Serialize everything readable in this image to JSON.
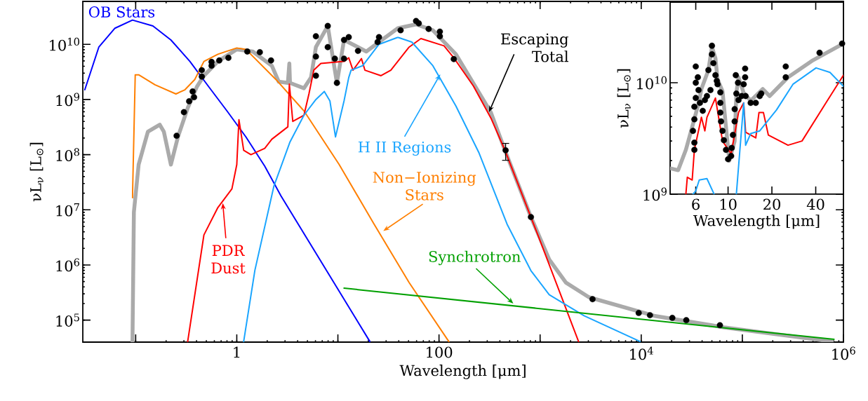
{
  "chart_data": [
    {
      "type": "line",
      "xlabel": "Wavelength [μm]",
      "ylabel": "νL$_{ν}$ [L$_{⊙}$]",
      "log": "xy",
      "xlim": [
        0.03,
        1000000.0
      ],
      "ylim": [
        40000.0,
        60000000000.0
      ],
      "xticks": [
        {
          "value": 0.1,
          "label": null
        },
        1,
        {
          "value": 10,
          "label": null
        },
        100,
        {
          "value": 1000,
          "label": null
        },
        {
          "value": 10000,
          "label": "10$^{4}$"
        },
        {
          "value": 100000,
          "label": null
        },
        {
          "value": 1000000,
          "label": "10$^{6}$"
        }
      ],
      "yticks": [
        {
          "value": 100000.0,
          "label": "10$^{5}$"
        },
        {
          "value": 1000000.0,
          "label": "10$^{6}$"
        },
        {
          "value": 10000000.0,
          "label": "10$^{7}$"
        },
        {
          "value": 100000000.0,
          "label": "10$^{8}$"
        },
        {
          "value": 1000000000.0,
          "label": "10$^{9}$"
        },
        {
          "value": 10000000000.0,
          "label": "10$^{10}$"
        }
      ],
      "series": [
        {
          "name": "Escaping Total",
          "color": "#aaaaaa",
          "x": [
            0.093,
            0.096,
            0.107,
            0.132,
            0.173,
            0.19,
            0.223,
            0.262,
            0.327,
            0.403,
            0.473,
            0.65,
            1.0,
            1.44,
            2.22,
            2.6,
            3.2,
            3.31,
            3.36,
            4.62,
            5.42,
            6.06,
            7.94,
            9.78,
            11.5,
            15.8,
            19.1,
            25.5,
            39.2,
            59.3,
            86.9,
            147,
            326,
            449,
            811,
            1230,
            1800,
            3040,
            13400,
            66000,
            770000
          ],
          "values": [
            41000.0,
            9100000.0,
            66000000.0,
            260000000.0,
            350000000.0,
            260000000.0,
            66000000.0,
            210000000.0,
            700000000.0,
            1700000000.0,
            2700000000.0,
            4900000000.0,
            8100000000.0,
            7400000000.0,
            4100000000.0,
            2100000000.0,
            2000000000.0,
            4500000000.0,
            2000000000.0,
            1600000000.0,
            2500000000.0,
            8900000000.0,
            21500000000.0,
            2000000000.0,
            12000000000.0,
            8900000000.0,
            7400000000.0,
            11000000000.0,
            19600000000.0,
            23000000000.0,
            18000000000.0,
            6600000000.0,
            580000000.0,
            120000000.0,
            7400000.0,
            1260000.0,
            480000.0,
            260000.0,
            120000.0,
            74000.0,
            41000.0
          ]
        },
        {
          "name": "OB Stars",
          "color": "#0000ff",
          "x": [
            0.0314,
            0.0432,
            0.0624,
            0.093,
            0.148,
            0.223,
            0.344,
            0.528,
            0.8,
            1.23,
            1.89,
            2.73,
            5.17,
            20.7
          ],
          "values": [
            1500000000.0,
            8900000000.0,
            19600000000.0,
            27500000000.0,
            21500000000.0,
            12000000000.0,
            4900000000.0,
            1700000000.0,
            620000000.0,
            210000000.0,
            62000000.0,
            18000000.0,
            2650000.0,
            41000.0
          ]
        },
        {
          "name": "Non−Ionizing Stars",
          "color": "#ff7f00",
          "x": [
            0.093,
            0.099,
            0.107,
            0.155,
            0.25,
            0.307,
            0.384,
            0.473,
            0.65,
            1.0,
            1.23,
            2.44,
            4.62,
            10.3,
            22.8,
            50.6,
            125
          ],
          "values": [
            16600000.0,
            2800000000.0,
            2800000000.0,
            1850000000.0,
            1260000000.0,
            1500000000.0,
            2300000000.0,
            4900000000.0,
            6600000000.0,
            8600000000.0,
            8100000000.0,
            2300000000.0,
            620000000.0,
            66000000.0,
            5500000.0,
            480000.0,
            41000.0
          ]
        },
        {
          "name": "PDR Dust",
          "color": "#ff0000",
          "x": [
            0.327,
            0.473,
            0.65,
            0.895,
            1.0,
            1.05,
            1.17,
            1.38,
            1.89,
            2.22,
            3.2,
            3.31,
            3.58,
            4.62,
            5.17,
            5.78,
            6.78,
            11.5,
            12.8,
            14.1,
            17.1,
            18.5,
            26.7,
            33.4,
            50.6,
            66.2,
            112,
            140,
            219,
            326,
            449,
            950,
            2400
          ],
          "values": [
            41000.0,
            3500000.0,
            11000000.0,
            24000000.0,
            66000000.0,
            430000000.0,
            120000000.0,
            100000000.0,
            130000000.0,
            190000000.0,
            320000000.0,
            1900000000.0,
            400000000.0,
            520000000.0,
            1260000000.0,
            3400000000.0,
            4500000000.0,
            4900000000.0,
            5700000000.0,
            3400000000.0,
            5500000000.0,
            3400000000.0,
            2700000000.0,
            3400000000.0,
            8900000000.0,
            12700000000.0,
            9400000000.0,
            5700000000.0,
            1750000000.0,
            460000000.0,
            120000000.0,
            3500000.0,
            41000.0
          ]
        },
        {
          "name": "H II Regions",
          "color": "#1aa5ff",
          "x": [
            1.17,
            1.51,
            2.33,
            3.36,
            4.62,
            6.06,
            7.34,
            8.34,
            9.47,
            11.5,
            12.8,
            13.5,
            17.6,
            25.5,
            39.2,
            53.8,
            86.9,
            147,
            249,
            471,
            811,
            1230,
            2720,
            9750
          ],
          "values": [
            41000.0,
            800000.0,
            27000000.0,
            170000000.0,
            520000000.0,
            1000000000.0,
            1400000000.0,
            940000000.0,
            210000000.0,
            940000000.0,
            2500000000.0,
            3400000000.0,
            4100000000.0,
            10000000000.0,
            13400000000.0,
            11000000000.0,
            4100000000.0,
            760000000.0,
            107000000.0,
            5500000.0,
            790000.0,
            290000.0,
            120000.0,
            41000.0
          ]
        },
        {
          "name": "Synchrotron",
          "color": "#00a000",
          "x": [
            11.5,
            807000
          ],
          "values": [
            380000.0,
            45000.0
          ]
        },
        {
          "type": "scatter",
          "color": "#000000",
          "marker": "circle",
          "x": [
            0.254,
            0.3,
            0.338,
            0.366,
            0.378,
            0.451,
            0.451,
            0.563,
            0.563,
            0.671,
            0.826,
            1.27,
            1.69,
            2.18,
            6.06,
            6.06,
            6.06,
            7.94,
            7.94,
            9.33,
            9.78,
            11.5,
            11.5,
            12.8,
            15.8,
            24.7,
            25.5,
            41.7,
            59.3,
            63.1,
            79,
            102,
            102,
            140,
            456,
            811,
            3300,
            9440,
            12200,
            20300,
            27900,
            60000
          ],
          "values": [
            220000000.0,
            590000000.0,
            930000000.0,
            1400000000.0,
            1100000000.0,
            3400000000.0,
            2600000000.0,
            4800000000.0,
            4100000000.0,
            5100000000.0,
            5700000000.0,
            7400000000.0,
            7200000000.0,
            5100000000.0,
            14000000000.0,
            6000000000.0,
            2700000000.0,
            21500000000.0,
            8900000000.0,
            5500000000.0,
            2000000000.0,
            12000000000.0,
            5500000000.0,
            13500000000.0,
            7600000000.0,
            11000000000.0,
            13500000000.0,
            18000000000.0,
            26500000000.0,
            24000000000.0,
            19000000000.0,
            17000000000.0,
            14000000000.0,
            5400000000.0,
            120000000.0,
            7400000.0,
            240000.0,
            135000.0,
            123000.0,
            110000.0,
            100000.0,
            81000.0
          ],
          "errors": [
            null,
            null,
            null,
            null,
            null,
            null,
            null,
            null,
            null,
            null,
            null,
            null,
            null,
            null,
            null,
            null,
            null,
            null,
            null,
            null,
            null,
            null,
            null,
            null,
            null,
            null,
            null,
            null,
            null,
            null,
            null,
            null,
            null,
            null,
            [
              79000000.0,
              160000000.0
            ],
            null,
            null,
            null,
            null,
            null,
            null,
            null
          ]
        }
      ]
    },
    {
      "type": "line",
      "xlabel": "Wavelength [μm]",
      "ylabel": "νL$_{ν}$ [L$_{⊙}$]",
      "log": "xy",
      "xlim": [
        4,
        62
      ],
      "ylim": [
        1000000000.0,
        53000000000.0
      ],
      "xticks": [
        6,
        10,
        20,
        40
      ],
      "yticks": [
        {
          "value": 1000000000.0,
          "label": "10$^{9}$"
        },
        {
          "value": 10000000000.0,
          "label": "10$^{10}$"
        }
      ],
      "series": [
        {
          "color": "#aaaaaa",
          "x": [
            4.06,
            4.54,
            5.13,
            5.67,
            6.34,
            6.56,
            7.33,
            7.75,
            8.19,
            8.47,
            9.16,
            9.89,
            10.2,
            11.1,
            11.4,
            11.8,
            12.8,
            14.3,
            17.3,
            19.3,
            25.8,
            37.6,
            62
          ],
          "values": [
            1700000000.0,
            1640000000.0,
            2500000000.0,
            4000000000.0,
            6900000000.0,
            8800000000.0,
            13000000000.0,
            21000000000.0,
            16600000000.0,
            10700000000.0,
            8400000000.0,
            3000000000.0,
            2000000000.0,
            3000000000.0,
            8100000000.0,
            11200000000.0,
            8100000000.0,
            6900000000.0,
            8800000000.0,
            7600000000.0,
            11200000000.0,
            15700000000.0,
            22500000000.0
          ]
        },
        {
          "color": "#ff0000",
          "x": [
            5.13,
            5.25,
            5.67,
            5.87,
            6.56,
            6.93,
            7.16,
            8.19,
            9.16,
            10.5,
            11.8,
            12.8,
            13.2,
            15.5,
            16.3,
            17.5,
            18.9,
            25.8,
            32.2,
            47,
            62
          ],
          "values": [
            1000000000.0,
            1420000000.0,
            1340000000.0,
            2500000000.0,
            4900000000.0,
            3700000000.0,
            4900000000.0,
            7300000000.0,
            3000000000.0,
            2300000000.0,
            5400000000.0,
            6600000000.0,
            3600000000.0,
            3200000000.0,
            5400000000.0,
            5400000000.0,
            3400000000.0,
            2750000000.0,
            3000000000.0,
            6600000000.0,
            11700000000.0
          ]
        },
        {
          "color": "#1aa5ff",
          "x": [
            5.74,
            6.0,
            6.34,
            7.16,
            8.02,
            9.5,
            11.4,
            12.8,
            13.2,
            14.3,
            16.5,
            21.5,
            27.9,
            40.2,
            50.1,
            62
          ],
          "values": [
            1000000000.0,
            1070000000.0,
            1340000000.0,
            1380000000.0,
            1000000000.0,
            null,
            1000000000.0,
            6600000000.0,
            2750000000.0,
            3500000000.0,
            3700000000.0,
            5700000000.0,
            9700000000.0,
            13600000000.0,
            12400000000.0,
            9300000000.0
          ]
        },
        {
          "type": "scatter",
          "color": "#000000",
          "marker": "circle",
          "x": [
            6.0,
            6.2,
            6.0,
            6.27,
            6.0,
            5.87,
            5.87,
            5.74,
            5.87,
            5.87,
            6.41,
            6.7,
            6.93,
            7.16,
            7.57,
            7.33,
            7.75,
            7.75,
            7.93,
            8.19,
            8.37,
            8.47,
            8.85,
            8.85,
            8.85,
            8.95,
            9.16,
            9.36,
            9.68,
            10.0,
            10.5,
            10.6,
            10.8,
            11.1,
            11.1,
            11.4,
            11.3,
            11.7,
            11.8,
            12.4,
            13.1,
            13.1,
            12.8,
            13.2,
            14.3,
            15.5,
            16.5,
            16.9,
            24.9,
            24.9,
            42.5,
            60.7
          ],
          "values": [
            14000000000.0,
            11200000000.0,
            10000000000.0,
            8600000000.0,
            7300000000.0,
            6100000000.0,
            4700000000.0,
            3700000000.0,
            2900000000.0,
            2500000000.0,
            6600000000.0,
            5600000000.0,
            7000000000.0,
            7600000000.0,
            8600000000.0,
            13000000000.0,
            21500000000.0,
            18000000000.0,
            15000000000.0,
            11700000000.0,
            10400000000.0,
            9700000000.0,
            8200000000.0,
            6600000000.0,
            5400000000.0,
            4500000000.0,
            3700000000.0,
            3050000000.0,
            2500000000.0,
            2060000000.0,
            2200000000.0,
            2600000000.0,
            3400000000.0,
            4500000000.0,
            5800000000.0,
            8000000000.0,
            11700000000.0,
            10000000000.0,
            7000000000.0,
            7600000000.0,
            13400000000.0,
            11200000000.0,
            9700000000.0,
            7600000000.0,
            6600000000.0,
            6600000000.0,
            7600000000.0,
            8000000000.0,
            14000000000.0,
            11200000000.0,
            18600000000.0,
            22500000000.0
          ]
        }
      ]
    }
  ]
}
